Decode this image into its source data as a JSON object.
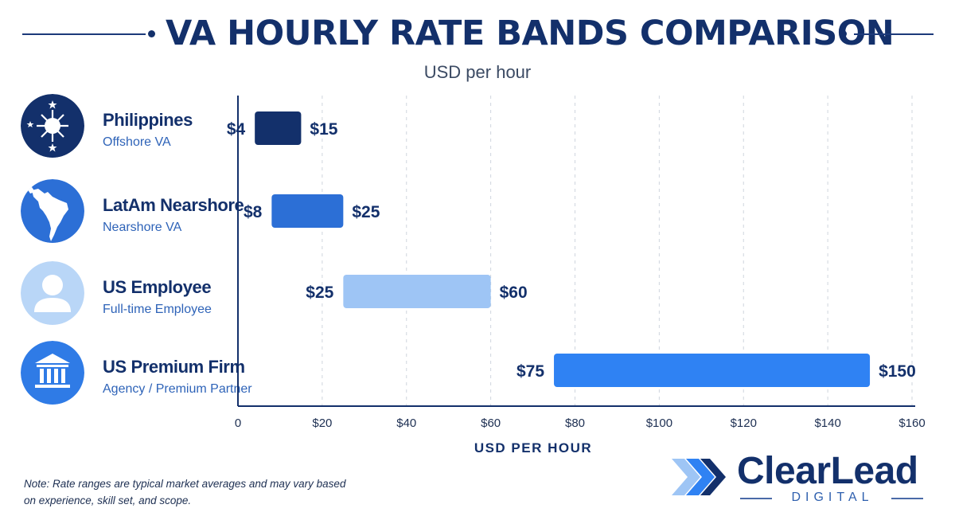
{
  "title": "VA HOURLY RATE BANDS COMPARISON",
  "subtitle": "USD per hour",
  "categories": [
    {
      "name": "Philippines",
      "sub": "Offshore VA",
      "icon": "philippines-flag-icon"
    },
    {
      "name": "LatAm Nearshore",
      "sub": "Nearshore VA",
      "icon": "latin-america-map-icon"
    },
    {
      "name": "US Employee",
      "sub": "Full-time Employee",
      "icon": "person-icon"
    },
    {
      "name": "US Premium Firm",
      "sub": "Agency / Premium Partner",
      "icon": "bank-building-icon"
    }
  ],
  "chart_data": {
    "type": "bar",
    "orientation": "horizontal",
    "subtype": "range",
    "title": "VA HOURLY RATE BANDS COMPARISON",
    "subtitle": "USD per hour",
    "xlabel": "USD PER HOUR",
    "categories": [
      "Philippines",
      "LatAm Nearshore",
      "US Employee",
      "US Premium Firm"
    ],
    "ranges": [
      {
        "low": 4,
        "high": 15,
        "low_label": "$4",
        "high_label": "$15",
        "color": "#13306b"
      },
      {
        "low": 8,
        "high": 25,
        "low_label": "$8",
        "high_label": "$25",
        "color": "#2c6fd6"
      },
      {
        "low": 25,
        "high": 60,
        "low_label": "$25",
        "high_label": "$60",
        "color": "#9ec5f5"
      },
      {
        "low": 75,
        "high": 150,
        "low_label": "$75",
        "high_label": "$150",
        "color": "#2f82f3"
      }
    ],
    "xlim": [
      0,
      160
    ],
    "xticks": [
      0,
      20,
      40,
      60,
      80,
      100,
      120,
      140,
      160
    ],
    "xtick_labels": [
      "0",
      "$20",
      "$40",
      "$60",
      "$80",
      "$100",
      "$120",
      "$140",
      "$160"
    ],
    "grid": true
  },
  "note": "Note: Rate ranges are typical market averages and may vary based on experience, skill set, and scope.",
  "logo": {
    "brand": "ClearLead",
    "sub": "DIGITAL"
  },
  "colors": {
    "navy": "#13306b",
    "blue": "#2c6fd6",
    "light_blue": "#9ec5f5",
    "bright_blue": "#2f82f3"
  }
}
